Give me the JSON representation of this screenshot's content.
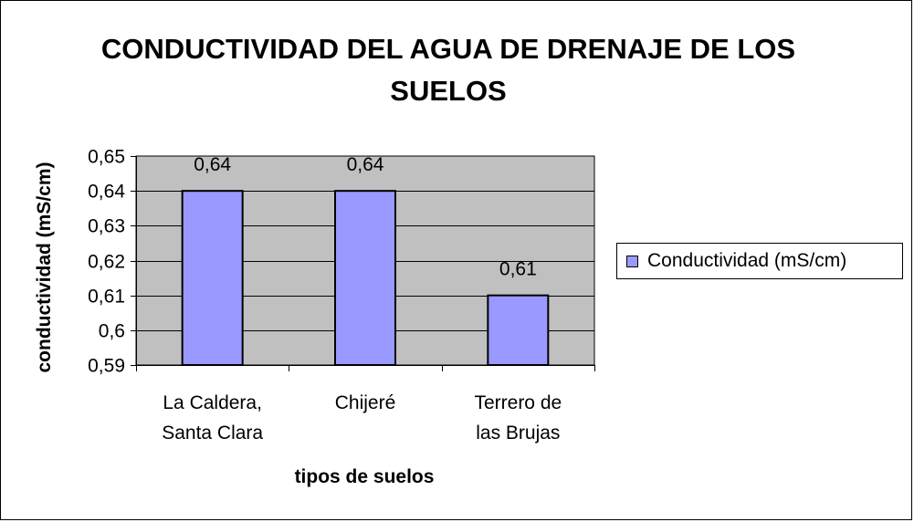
{
  "chart_data": {
    "type": "bar",
    "title": "CONDUCTIVIDAD DEL AGUA DE DRENAJE DE LOS SUELOS",
    "xlabel": "tipos de suelos",
    "ylabel": "conductividad (mS/cm)",
    "categories": [
      [
        "La Caldera,",
        "Santa Clara"
      ],
      [
        "Chijeré"
      ],
      [
        "Terrero de",
        "las Brujas"
      ]
    ],
    "series": [
      {
        "name": "Conductividad (mS/cm)",
        "values": [
          0.64,
          0.64,
          0.61
        ]
      }
    ],
    "data_labels": [
      "0,64",
      "0,64",
      "0,61"
    ],
    "ylim": [
      0.59,
      0.65
    ],
    "yticks": [
      0.59,
      0.6,
      0.61,
      0.62,
      0.63,
      0.64,
      0.65
    ],
    "ytick_labels": [
      "0,59",
      "0,6",
      "0,61",
      "0,62",
      "0,63",
      "0,64",
      "0,65"
    ],
    "grid": true,
    "legend": "right",
    "colors": {
      "bar": "#9999ff",
      "plot_bg": "#c0c0c0",
      "grid": "#000000"
    }
  }
}
